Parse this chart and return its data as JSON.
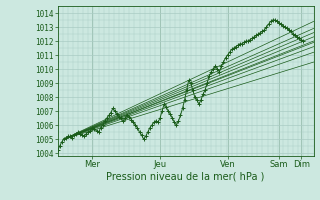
{
  "xlabel": "Pression niveau de la mer( hPa )",
  "bg_color": "#cce8e0",
  "grid_color": "#aaccc4",
  "line_color": "#1a5c1a",
  "ylim": [
    1003.8,
    1014.5
  ],
  "xlim": [
    0,
    125
  ],
  "yticks": [
    1004,
    1005,
    1006,
    1007,
    1008,
    1009,
    1010,
    1011,
    1012,
    1013,
    1014
  ],
  "xtick_positions": [
    17,
    50,
    83,
    108,
    119
  ],
  "xtick_labels": [
    "Mer",
    "Jeu",
    "Ven",
    "Sam",
    "Dim"
  ],
  "fan_lines": [
    {
      "x0": 3,
      "y0": 1005.0,
      "x1": 125,
      "y1": 1012.0
    },
    {
      "x0": 3,
      "y0": 1005.0,
      "x1": 125,
      "y1": 1012.3
    },
    {
      "x0": 3,
      "y0": 1005.0,
      "x1": 125,
      "y1": 1011.6
    },
    {
      "x0": 3,
      "y0": 1005.0,
      "x1": 125,
      "y1": 1011.9
    },
    {
      "x0": 3,
      "y0": 1005.0,
      "x1": 125,
      "y1": 1012.6
    },
    {
      "x0": 3,
      "y0": 1005.0,
      "x1": 125,
      "y1": 1013.4
    },
    {
      "x0": 3,
      "y0": 1005.0,
      "x1": 125,
      "y1": 1012.9
    },
    {
      "x0": 3,
      "y0": 1005.0,
      "x1": 125,
      "y1": 1011.2
    },
    {
      "x0": 3,
      "y0": 1005.0,
      "x1": 125,
      "y1": 1010.5
    }
  ],
  "main_line_x": [
    0,
    1,
    2,
    3,
    4,
    5,
    6,
    7,
    8,
    9,
    10,
    11,
    12,
    13,
    14,
    15,
    16,
    17,
    18,
    19,
    20,
    21,
    22,
    23,
    24,
    25,
    26,
    27,
    28,
    29,
    30,
    31,
    32,
    33,
    34,
    35,
    36,
    37,
    38,
    39,
    40,
    41,
    42,
    43,
    44,
    45,
    46,
    47,
    48,
    49,
    50,
    51,
    52,
    53,
    54,
    55,
    56,
    57,
    58,
    59,
    60,
    61,
    62,
    63,
    64,
    65,
    66,
    67,
    68,
    69,
    70,
    71,
    72,
    73,
    74,
    75,
    76,
    77,
    78,
    79,
    80,
    81,
    82,
    83,
    84,
    85,
    86,
    87,
    88,
    89,
    90,
    91,
    92,
    93,
    94,
    95,
    96,
    97,
    98,
    99,
    100,
    101,
    102,
    103,
    104,
    105,
    106,
    107,
    108,
    109,
    110,
    111,
    112,
    113,
    114,
    115,
    116,
    117,
    118,
    119,
    120
  ],
  "main_line_y": [
    1004.2,
    1004.5,
    1004.8,
    1005.0,
    1005.1,
    1005.2,
    1005.2,
    1005.1,
    1005.3,
    1005.4,
    1005.5,
    1005.4,
    1005.3,
    1005.2,
    1005.4,
    1005.5,
    1005.6,
    1005.8,
    1005.7,
    1005.6,
    1005.5,
    1005.8,
    1006.0,
    1006.3,
    1006.5,
    1006.7,
    1006.9,
    1007.2,
    1007.0,
    1006.8,
    1006.6,
    1006.5,
    1006.3,
    1006.5,
    1006.7,
    1006.6,
    1006.4,
    1006.2,
    1006.0,
    1005.8,
    1005.5,
    1005.3,
    1005.0,
    1005.2,
    1005.5,
    1005.8,
    1006.0,
    1006.2,
    1006.3,
    1006.2,
    1006.5,
    1007.0,
    1007.5,
    1007.3,
    1007.0,
    1006.8,
    1006.5,
    1006.2,
    1006.0,
    1006.3,
    1006.7,
    1007.2,
    1007.8,
    1008.5,
    1009.2,
    1009.0,
    1008.5,
    1008.0,
    1007.8,
    1007.5,
    1007.8,
    1008.2,
    1008.5,
    1009.0,
    1009.5,
    1009.8,
    1010.0,
    1010.2,
    1010.0,
    1009.8,
    1010.2,
    1010.5,
    1010.8,
    1011.0,
    1011.2,
    1011.4,
    1011.5,
    1011.6,
    1011.7,
    1011.8,
    1011.8,
    1011.9,
    1012.0,
    1012.0,
    1012.1,
    1012.2,
    1012.3,
    1012.4,
    1012.5,
    1012.6,
    1012.7,
    1012.8,
    1013.0,
    1013.2,
    1013.4,
    1013.5,
    1013.5,
    1013.4,
    1013.3,
    1013.2,
    1013.1,
    1013.0,
    1012.9,
    1012.8,
    1012.7,
    1012.5,
    1012.4,
    1012.3,
    1012.2,
    1012.1,
    1012.0
  ]
}
